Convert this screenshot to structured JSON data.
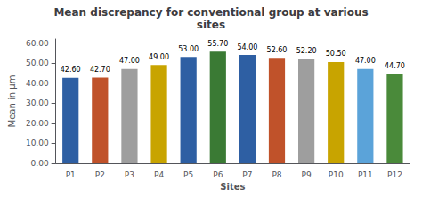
{
  "chart_data": {
    "type": "bar",
    "title": "Mean discrepancy for conventional group at various\nsites",
    "xlabel": "Sites",
    "ylabel": "Mean in µm",
    "categories": [
      "P1",
      "P2",
      "P3",
      "P4",
      "P5",
      "P6",
      "P7",
      "P8",
      "P9",
      "P10",
      "P11",
      "P12"
    ],
    "values": [
      42.6,
      42.7,
      47.0,
      49.0,
      53.0,
      55.7,
      54.0,
      52.6,
      52.2,
      50.5,
      47.0,
      44.7
    ],
    "value_labels": [
      "42.60",
      "42.70",
      "47.00",
      "49.00",
      "53.00",
      "55.70",
      "54.00",
      "52.60",
      "52.20",
      "50.50",
      "47.00",
      "44.70"
    ],
    "colors": [
      "#2E5FA3",
      "#C0522A",
      "#9E9E9E",
      "#C8A400",
      "#2E5FA3",
      "#3A7A34",
      "#2E5FA3",
      "#C0522A",
      "#9E9E9E",
      "#C8A400",
      "#5BA3D9",
      "#4A8A3A"
    ],
    "ylim": [
      0,
      62
    ],
    "yticks": [
      {
        "value": 0,
        "label": "0.00"
      },
      {
        "value": 10,
        "label": "10.00"
      },
      {
        "value": 20,
        "label": "20.00"
      },
      {
        "value": 30,
        "label": "30.00"
      },
      {
        "value": 40,
        "label": "40.00"
      },
      {
        "value": 50,
        "label": "50.00"
      },
      {
        "value": 60,
        "label": "60.00"
      }
    ],
    "grid": false,
    "data_labels": true
  }
}
